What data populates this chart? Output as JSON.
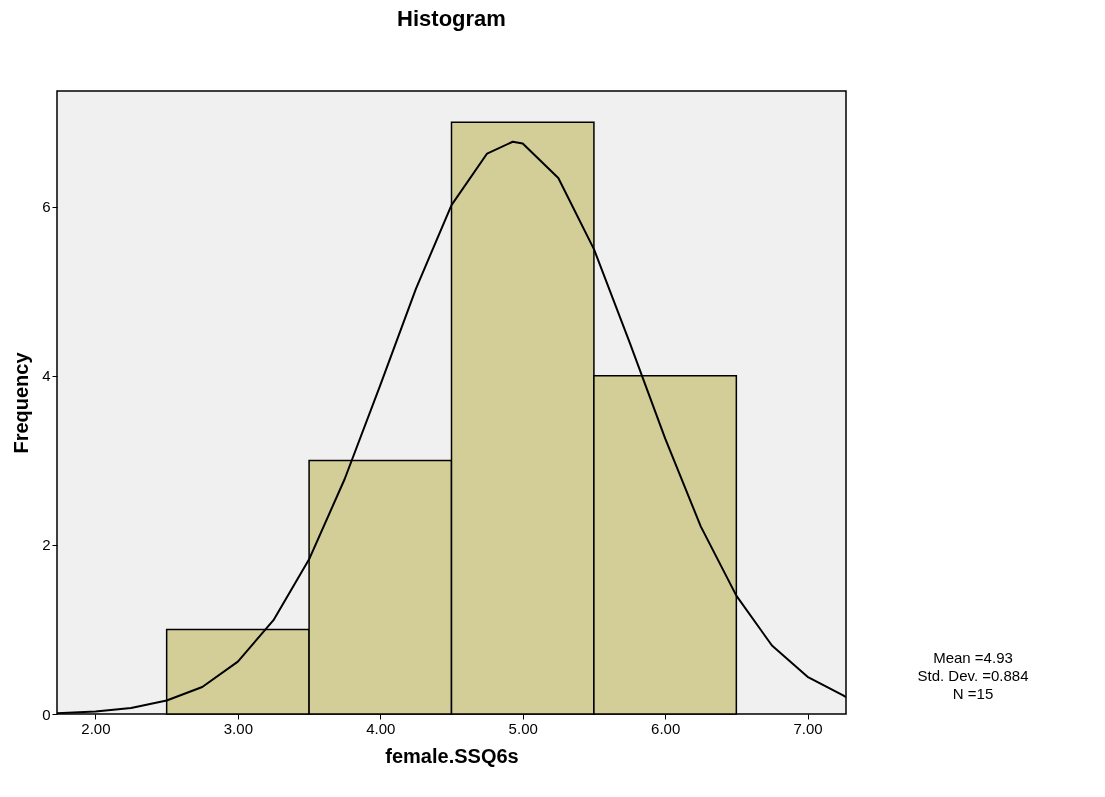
{
  "chart_data": {
    "type": "histogram",
    "title": "Histogram",
    "xlabel": "female.SSQ6s",
    "ylabel": "Frequency",
    "bins": [
      2.5,
      3.5,
      4.5,
      5.5,
      6.5
    ],
    "values": [
      1,
      3,
      7,
      4
    ],
    "color": "#d3ce98",
    "series": [
      {
        "type": "line",
        "color": "#000000",
        "x": [
          1.73,
          2.0,
          2.25,
          2.5,
          2.75,
          3.0,
          3.25,
          3.5,
          3.75,
          4.0,
          4.25,
          4.5,
          4.75,
          4.93,
          5.0,
          5.25,
          5.5,
          5.75,
          6.0,
          6.25,
          6.5,
          6.75,
          7.0,
          7.25,
          7.27
        ],
        "values": [
          0.01,
          0.03,
          0.07,
          0.16,
          0.32,
          0.62,
          1.11,
          1.83,
          2.78,
          3.89,
          5.03,
          6.02,
          6.63,
          6.77,
          6.75,
          6.34,
          5.5,
          4.4,
          3.26,
          2.22,
          1.4,
          0.81,
          0.44,
          0.22,
          0.2
        ]
      }
    ],
    "xlim": [
      1.73,
      7.27
    ],
    "ylim": [
      0,
      7.37
    ],
    "xticks": [
      {
        "value": 2,
        "label": "2.00"
      },
      {
        "value": 3,
        "label": "3.00"
      },
      {
        "value": 4,
        "label": "4.00"
      },
      {
        "value": 5,
        "label": "5.00"
      },
      {
        "value": 6,
        "label": "6.00"
      },
      {
        "value": 7,
        "label": "7.00"
      }
    ],
    "yticks": [
      0,
      2,
      4,
      6
    ],
    "grid": false,
    "annotations": [
      "Mean =4.93",
      "Std. Dev. =0.884",
      "N =15"
    ]
  }
}
